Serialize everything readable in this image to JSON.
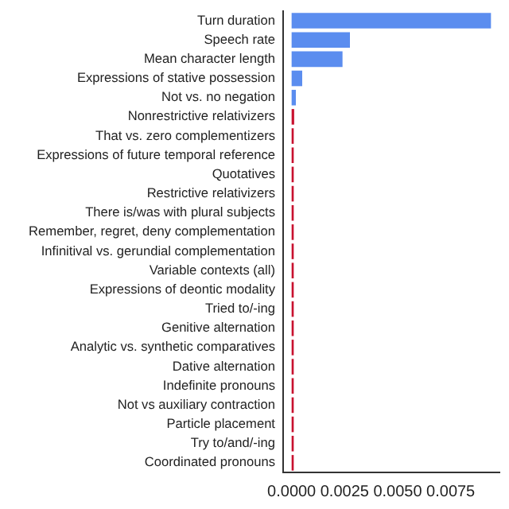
{
  "chart_data": {
    "type": "bar",
    "orientation": "horizontal",
    "categories": [
      "Turn duration",
      "Speech rate",
      "Mean character length",
      "Expressions of stative possession",
      "Not vs. no negation",
      "Nonrestrictive relativizers",
      "That vs. zero complementizers",
      "Expressions of future temporal reference",
      "Quotatives",
      "Restrictive relativizers",
      "There is/was with plural subjects",
      "Remember, regret, deny complementation",
      "Infinitival vs. gerundial complementation",
      "Variable contexts (all)",
      "Expressions of deontic modality",
      "Tried to/-ing",
      "Genitive alternation",
      "Analytic vs. synthetic comparatives",
      "Dative alternation",
      "Indefinite pronouns",
      "Not vs auxiliary contraction",
      "Particle placement",
      "Try to/and/-ing",
      "Coordinated pronouns"
    ],
    "values": [
      0.0094,
      0.00275,
      0.0024,
      0.0005,
      0.0002,
      0.00012,
      0.0001,
      0.0001,
      0.0001,
      0.0001,
      0.0001,
      0.0001,
      0.0001,
      0.0001,
      0.0001,
      0.0001,
      0.0001,
      0.0001,
      0.0001,
      0.0001,
      0.0001,
      0.0001,
      0.0001,
      0.0001
    ],
    "colors": [
      "#5b8def",
      "#5b8def",
      "#5b8def",
      "#5b8def",
      "#5b8def",
      "#c8102e",
      "#c8102e",
      "#c8102e",
      "#c8102e",
      "#c8102e",
      "#c8102e",
      "#c8102e",
      "#c8102e",
      "#c8102e",
      "#c8102e",
      "#c8102e",
      "#c8102e",
      "#c8102e",
      "#c8102e",
      "#c8102e",
      "#c8102e",
      "#c8102e",
      "#c8102e",
      "#c8102e"
    ],
    "xlim": [
      -0.0004,
      0.0098
    ],
    "xticks": [
      {
        "value": 0,
        "label": "0.0000"
      },
      {
        "value": 0.0025,
        "label": "0.0025"
      },
      {
        "value": 0.005,
        "label": "0.0050"
      },
      {
        "value": 0.0075,
        "label": "0.0075"
      }
    ],
    "grid": false,
    "legend": false
  }
}
